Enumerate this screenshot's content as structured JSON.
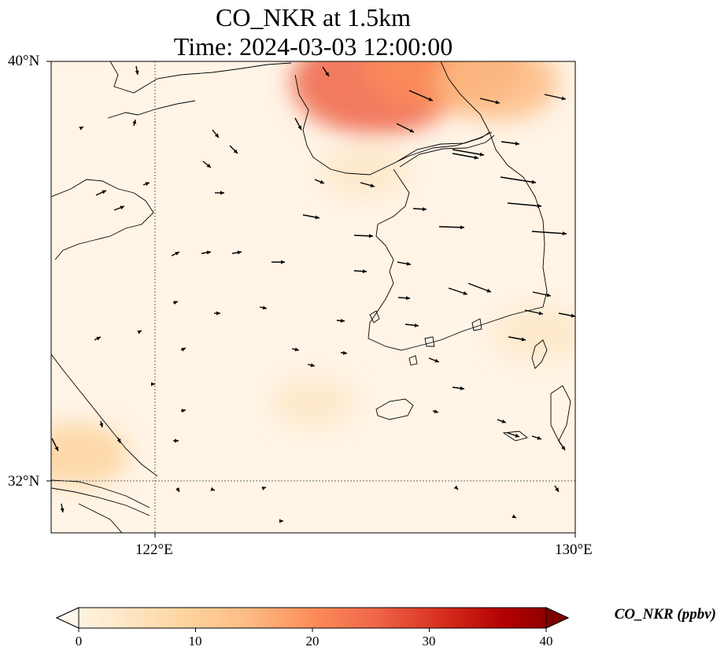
{
  "title": {
    "line1": "CO_NKR at 1.5km",
    "line2": "Time: 2024-03-03 12:00:00"
  },
  "axes": {
    "lat_labels": [
      "40°N",
      "32°N"
    ],
    "lon_labels": [
      "122°E",
      "130°E"
    ],
    "lon_range": [
      120,
      130
    ],
    "lat_range": [
      31,
      40
    ],
    "gridlines": "dotted, at 122°E and 32°N"
  },
  "colorbar": {
    "label": "CO_NKR (ppbv)",
    "ticks": [
      "0",
      "10",
      "20",
      "30",
      "40"
    ],
    "range": [
      0,
      40
    ],
    "colormap": "OrRd",
    "extend": "both"
  },
  "colors": {
    "low": "#fff7ec",
    "mid": "#fdbb84",
    "high": "#d7301f",
    "max": "#7f0000",
    "coastline": "#000000"
  },
  "plumes": [
    {
      "lon": 126.2,
      "lat": 39.6,
      "value": 24
    },
    {
      "lon": 127.5,
      "lat": 40.0,
      "value": 22
    },
    {
      "lon": 128.5,
      "lat": 39.6,
      "value": 14
    },
    {
      "lon": 120.5,
      "lat": 32.5,
      "value": 9
    },
    {
      "lon": 125.0,
      "lat": 33.5,
      "value": 5
    },
    {
      "lon": 129.3,
      "lat": 34.8,
      "value": 7
    },
    {
      "lon": 126.0,
      "lat": 37.9,
      "value": 6
    }
  ],
  "wind_vectors_note": "black arrows, mostly eastward at 1.5km"
}
